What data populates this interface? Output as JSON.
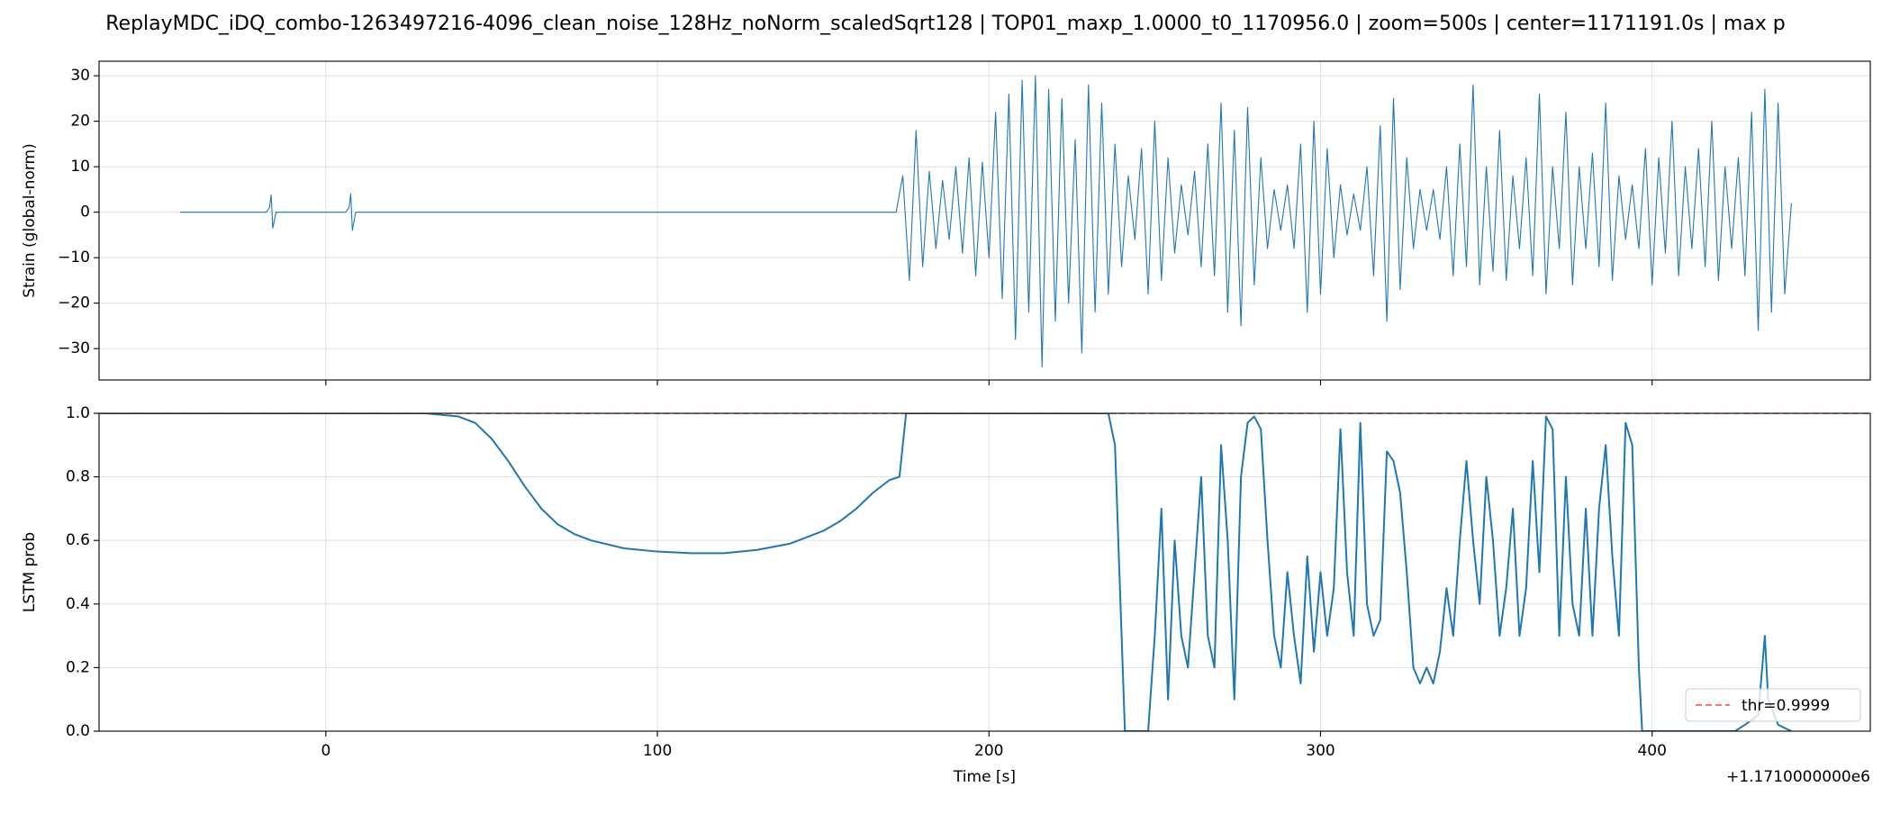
{
  "chart_data": [
    {
      "type": "line",
      "title": "ReplayMDC_iDQ_combo-1263497216-4096_clean_noise_128Hz_noNorm_scaledSqrt128 | TOP01_maxp_1.0000_t0_1170956.0 | zoom=500s | center=1171191.0s | max p",
      "ylabel": "Strain (global-norm)",
      "xlim": [
        -68.4,
        465.8
      ],
      "ylim": [
        -36.9,
        33.2
      ],
      "xticks": [
        0,
        100,
        200,
        300,
        400
      ],
      "yticks": [
        {
          "value": -30,
          "label": "−30"
        },
        {
          "value": -20,
          "label": "−20"
        },
        {
          "value": -10,
          "label": "−10"
        },
        0,
        10,
        20,
        30
      ],
      "grid": true,
      "series": [
        {
          "color": "#1f77b4",
          "x": [
            -44,
            -18,
            -17,
            -16.5,
            -16,
            -15,
            6,
            7,
            7.5,
            8,
            9,
            172,
            174,
            176,
            178,
            180,
            182,
            184,
            186,
            188,
            190,
            192,
            194,
            196,
            198,
            200,
            202,
            204,
            206,
            208,
            210,
            212,
            214,
            216,
            218,
            220,
            222,
            224,
            226,
            228,
            230,
            232,
            234,
            236,
            238,
            240,
            242,
            244,
            246,
            248,
            250,
            252,
            254,
            256,
            258,
            260,
            262,
            264,
            266,
            268,
            270,
            272,
            274,
            276,
            278,
            280,
            282,
            284,
            286,
            288,
            290,
            292,
            294,
            296,
            298,
            300,
            302,
            304,
            306,
            308,
            310,
            312,
            314,
            316,
            318,
            320,
            322,
            324,
            326,
            328,
            330,
            332,
            334,
            336,
            338,
            340,
            342,
            344,
            346,
            348,
            350,
            352,
            354,
            356,
            358,
            360,
            362,
            364,
            366,
            368,
            370,
            372,
            374,
            376,
            378,
            380,
            382,
            384,
            386,
            388,
            390,
            392,
            394,
            396,
            398,
            400,
            402,
            404,
            406,
            408,
            410,
            412,
            414,
            416,
            418,
            420,
            422,
            424,
            426,
            428,
            430,
            432,
            434,
            436,
            438,
            440,
            442
          ],
          "values": [
            0,
            0,
            1,
            3.8,
            -3.5,
            0,
            0,
            1,
            4,
            -4,
            0,
            0,
            8,
            -15,
            18,
            -12,
            9,
            -8,
            7,
            -6,
            10,
            -9,
            12,
            -14,
            11,
            -10,
            22,
            -19,
            26,
            -28,
            29,
            -22,
            30,
            -34,
            27,
            -24,
            25,
            -20,
            16,
            -31,
            28,
            -22,
            24,
            -18,
            15,
            -12,
            8,
            -6,
            14,
            -18,
            20,
            -15,
            12,
            -9,
            6,
            -5,
            9,
            -12,
            15,
            -14,
            24,
            -22,
            18,
            -25,
            23,
            -16,
            12,
            -8,
            5,
            -4,
            6,
            -8,
            15,
            -22,
            20,
            -18,
            14,
            -10,
            6,
            -5,
            4,
            -4,
            10,
            -14,
            19,
            -24,
            25,
            -17,
            12,
            -8,
            5,
            -4,
            5,
            -6,
            10,
            -14,
            15,
            -12,
            28,
            -16,
            10,
            -13,
            18,
            -15,
            8,
            -8,
            12,
            -14,
            26,
            -18,
            10,
            -8,
            22,
            -16,
            10,
            -8,
            13,
            -12,
            24,
            -15,
            8,
            -6,
            6,
            -8,
            14,
            -16,
            12,
            -9,
            20,
            -14,
            10,
            -8,
            14,
            -12,
            20,
            -15,
            10,
            -8,
            12,
            -14,
            22,
            -26,
            27,
            -22,
            24,
            -18,
            2
          ]
        }
      ]
    },
    {
      "type": "line",
      "ylabel": "LSTM prob",
      "xlabel": "Time [s]",
      "x_offset_label": "+1.1710000000e6",
      "xlim": [
        -68.4,
        465.8
      ],
      "ylim": [
        0,
        1
      ],
      "xticks": [
        0,
        100,
        200,
        300,
        400
      ],
      "yticks": [
        {
          "value": 0,
          "label": "0.0"
        },
        {
          "value": 0.2,
          "label": "0.2"
        },
        {
          "value": 0.4,
          "label": "0.4"
        },
        {
          "value": 0.6,
          "label": "0.6"
        },
        {
          "value": 0.8,
          "label": "0.8"
        },
        {
          "value": 1,
          "label": "1.0"
        }
      ],
      "grid": true,
      "legend": "lower right",
      "threshold": {
        "value": 0.9999,
        "label": "thr=0.9999",
        "color": "#ff4444"
      },
      "series": [
        {
          "color": "#1f77b4",
          "x": [
            -68.4,
            30,
            40,
            45,
            50,
            55,
            60,
            65,
            70,
            75,
            80,
            90,
            100,
            110,
            120,
            130,
            140,
            150,
            155,
            160,
            165,
            170,
            173,
            175,
            236,
            238,
            240,
            241,
            248,
            250,
            252,
            254,
            256,
            258,
            260,
            262,
            264,
            266,
            268,
            270,
            272,
            274,
            276,
            278,
            280,
            282,
            284,
            286,
            288,
            290,
            292,
            294,
            296,
            298,
            300,
            302,
            304,
            306,
            308,
            310,
            312,
            314,
            316,
            318,
            320,
            322,
            324,
            326,
            328,
            330,
            332,
            334,
            336,
            338,
            340,
            342,
            344,
            346,
            348,
            350,
            352,
            354,
            356,
            358,
            360,
            362,
            364,
            366,
            368,
            370,
            372,
            374,
            376,
            378,
            380,
            382,
            384,
            386,
            388,
            390,
            392,
            394,
            396,
            397,
            425,
            428,
            432,
            434,
            435,
            438,
            442
          ],
          "values": [
            1,
            1,
            0.99,
            0.97,
            0.92,
            0.85,
            0.77,
            0.7,
            0.65,
            0.62,
            0.6,
            0.575,
            0.565,
            0.56,
            0.56,
            0.57,
            0.59,
            0.63,
            0.66,
            0.7,
            0.75,
            0.79,
            0.8,
            1,
            1,
            0.9,
            0.3,
            0,
            0,
            0.3,
            0.7,
            0.1,
            0.6,
            0.3,
            0.2,
            0.5,
            0.8,
            0.3,
            0.2,
            0.9,
            0.6,
            0.1,
            0.8,
            0.97,
            0.99,
            0.95,
            0.6,
            0.3,
            0.2,
            0.5,
            0.3,
            0.15,
            0.55,
            0.25,
            0.5,
            0.3,
            0.45,
            0.95,
            0.5,
            0.3,
            0.97,
            0.4,
            0.3,
            0.35,
            0.88,
            0.85,
            0.75,
            0.5,
            0.2,
            0.15,
            0.2,
            0.15,
            0.25,
            0.45,
            0.3,
            0.6,
            0.85,
            0.6,
            0.4,
            0.8,
            0.6,
            0.3,
            0.45,
            0.7,
            0.3,
            0.45,
            0.85,
            0.5,
            0.99,
            0.95,
            0.3,
            0.8,
            0.4,
            0.3,
            0.7,
            0.3,
            0.7,
            0.9,
            0.55,
            0.3,
            0.97,
            0.9,
            0.2,
            0,
            0,
            0.02,
            0.05,
            0.3,
            0.1,
            0.02,
            0
          ]
        }
      ]
    }
  ]
}
